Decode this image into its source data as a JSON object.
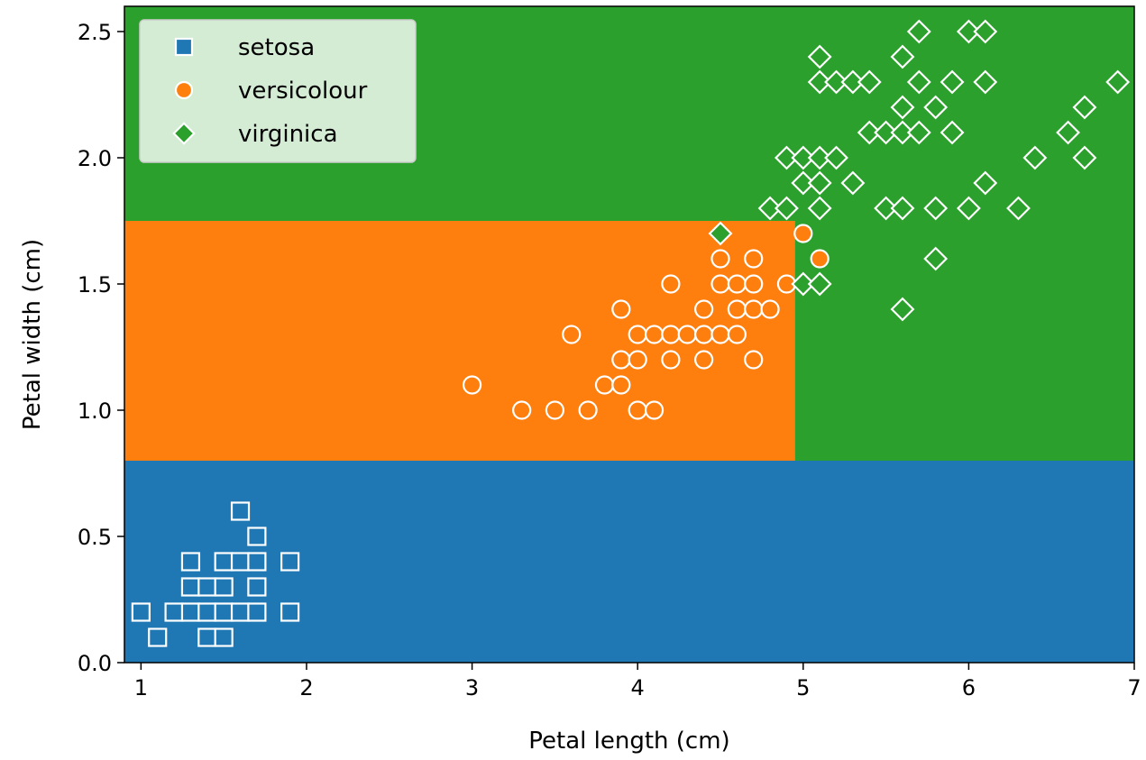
{
  "chart_data": {
    "type": "scatter",
    "xlabel": "Petal length (cm)",
    "ylabel": "Petal width (cm)",
    "xlim": [
      0.9,
      7.0
    ],
    "ylim": [
      0.0,
      2.6
    ],
    "x_ticks": [
      1,
      2,
      3,
      4,
      5,
      6,
      7
    ],
    "y_ticks": [
      0.0,
      0.5,
      1.0,
      1.5,
      2.0,
      2.5
    ],
    "grid": false,
    "legend_position": "top-left",
    "decision_regions": [
      {
        "class": "setosa",
        "x": [
          0.9,
          7.0
        ],
        "y": [
          0.0,
          0.8
        ],
        "color": "#1f77b4"
      },
      {
        "class": "versicolour",
        "x": [
          0.9,
          4.95
        ],
        "y": [
          0.8,
          1.75
        ],
        "color": "#ff7f0e"
      },
      {
        "class": "virginica",
        "x": [
          4.95,
          7.0
        ],
        "y": [
          0.8,
          1.75
        ],
        "color": "#2ca02c"
      },
      {
        "class": "virginica",
        "x": [
          0.9,
          7.0
        ],
        "y": [
          1.75,
          2.6
        ],
        "color": "#2ca02c"
      }
    ],
    "series": [
      {
        "name": "setosa",
        "marker": "square",
        "color": "#1f77b4",
        "points": [
          [
            1.0,
            0.2
          ],
          [
            1.1,
            0.1
          ],
          [
            1.2,
            0.2
          ],
          [
            1.3,
            0.2
          ],
          [
            1.3,
            0.3
          ],
          [
            1.3,
            0.4
          ],
          [
            1.4,
            0.1
          ],
          [
            1.4,
            0.2
          ],
          [
            1.4,
            0.3
          ],
          [
            1.5,
            0.1
          ],
          [
            1.5,
            0.2
          ],
          [
            1.5,
            0.3
          ],
          [
            1.5,
            0.4
          ],
          [
            1.6,
            0.2
          ],
          [
            1.6,
            0.4
          ],
          [
            1.6,
            0.6
          ],
          [
            1.7,
            0.2
          ],
          [
            1.7,
            0.3
          ],
          [
            1.7,
            0.4
          ],
          [
            1.7,
            0.5
          ],
          [
            1.9,
            0.2
          ],
          [
            1.9,
            0.4
          ]
        ]
      },
      {
        "name": "versicolour",
        "marker": "circle",
        "color": "#ff7f0e",
        "points": [
          [
            3.0,
            1.1
          ],
          [
            3.3,
            1.0
          ],
          [
            3.5,
            1.0
          ],
          [
            3.6,
            1.3
          ],
          [
            3.7,
            1.0
          ],
          [
            3.8,
            1.1
          ],
          [
            3.9,
            1.1
          ],
          [
            3.9,
            1.2
          ],
          [
            3.9,
            1.4
          ],
          [
            4.0,
            1.0
          ],
          [
            4.0,
            1.2
          ],
          [
            4.0,
            1.3
          ],
          [
            4.1,
            1.0
          ],
          [
            4.1,
            1.3
          ],
          [
            4.2,
            1.2
          ],
          [
            4.2,
            1.3
          ],
          [
            4.2,
            1.5
          ],
          [
            4.3,
            1.3
          ],
          [
            4.4,
            1.2
          ],
          [
            4.4,
            1.3
          ],
          [
            4.4,
            1.4
          ],
          [
            4.5,
            1.3
          ],
          [
            4.5,
            1.5
          ],
          [
            4.5,
            1.6
          ],
          [
            4.6,
            1.3
          ],
          [
            4.6,
            1.4
          ],
          [
            4.6,
            1.5
          ],
          [
            4.7,
            1.2
          ],
          [
            4.7,
            1.4
          ],
          [
            4.7,
            1.5
          ],
          [
            4.7,
            1.6
          ],
          [
            4.8,
            1.4
          ],
          [
            4.9,
            1.5
          ],
          [
            5.0,
            1.7
          ],
          [
            5.1,
            1.6
          ]
        ]
      },
      {
        "name": "virginica",
        "marker": "diamond",
        "color": "#2ca02c",
        "points": [
          [
            4.5,
            1.7
          ],
          [
            4.8,
            1.8
          ],
          [
            4.9,
            1.8
          ],
          [
            4.9,
            2.0
          ],
          [
            5.0,
            1.5
          ],
          [
            5.0,
            1.9
          ],
          [
            5.0,
            2.0
          ],
          [
            5.1,
            1.5
          ],
          [
            5.1,
            1.8
          ],
          [
            5.1,
            1.9
          ],
          [
            5.1,
            2.0
          ],
          [
            5.1,
            2.3
          ],
          [
            5.1,
            2.4
          ],
          [
            5.2,
            2.0
          ],
          [
            5.2,
            2.3
          ],
          [
            5.3,
            1.9
          ],
          [
            5.3,
            2.3
          ],
          [
            5.4,
            2.1
          ],
          [
            5.4,
            2.3
          ],
          [
            5.5,
            1.8
          ],
          [
            5.5,
            2.1
          ],
          [
            5.6,
            1.4
          ],
          [
            5.6,
            1.8
          ],
          [
            5.6,
            2.1
          ],
          [
            5.6,
            2.2
          ],
          [
            5.6,
            2.4
          ],
          [
            5.7,
            2.1
          ],
          [
            5.7,
            2.3
          ],
          [
            5.7,
            2.5
          ],
          [
            5.8,
            1.6
          ],
          [
            5.8,
            1.8
          ],
          [
            5.8,
            2.2
          ],
          [
            5.9,
            2.1
          ],
          [
            5.9,
            2.3
          ],
          [
            6.0,
            1.8
          ],
          [
            6.0,
            2.5
          ],
          [
            6.1,
            1.9
          ],
          [
            6.1,
            2.3
          ],
          [
            6.1,
            2.5
          ],
          [
            6.3,
            1.8
          ],
          [
            6.4,
            2.0
          ],
          [
            6.6,
            2.1
          ],
          [
            6.7,
            2.0
          ],
          [
            6.7,
            2.2
          ],
          [
            6.9,
            2.3
          ]
        ]
      }
    ]
  }
}
